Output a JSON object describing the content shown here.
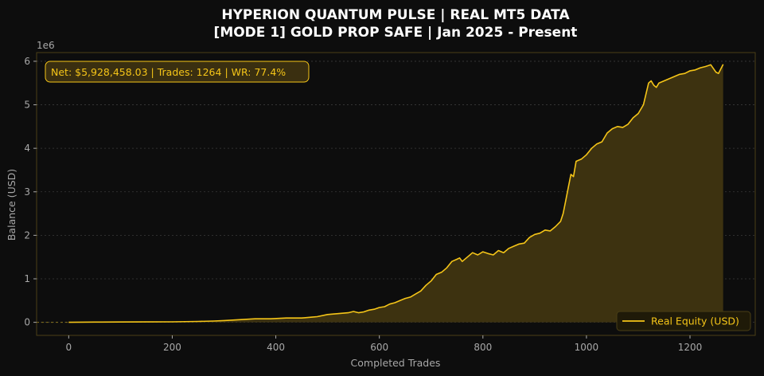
{
  "chart_data": {
    "type": "area",
    "title_line1": "HYPERION QUANTUM PULSE | REAL MT5 DATA",
    "title_line2": "[MODE 1] GOLD PROP SAFE | Jan 2025 - Present",
    "xlabel": "Completed Trades",
    "ylabel": "Balance (USD)",
    "y_multiplier_label": "1e6",
    "xlim": [
      -62,
      1326
    ],
    "ylim": [
      -0.3,
      6.2
    ],
    "x_ticks": [
      0,
      200,
      400,
      600,
      800,
      1000,
      1200
    ],
    "y_ticks": [
      0,
      1,
      2,
      3,
      4,
      5,
      6
    ],
    "grid": "horizontal dotted",
    "legend_position": "bottom-right",
    "annotation": "Net: $5,928,458.03 | Trades: 1264 | WR: 77.4%",
    "colors": {
      "line": "#f5c518",
      "fill": "#3d3210",
      "background": "#0d0d0d",
      "spine": "#4a3f16",
      "grid": "#3a3a3a"
    },
    "series": [
      {
        "name": "Real Equity (USD)",
        "x": [
          0,
          50,
          100,
          150,
          200,
          250,
          280,
          300,
          330,
          360,
          390,
          420,
          450,
          470,
          480,
          500,
          520,
          540,
          550,
          560,
          570,
          580,
          590,
          600,
          610,
          620,
          630,
          640,
          650,
          660,
          670,
          680,
          690,
          700,
          710,
          720,
          730,
          740,
          750,
          755,
          760,
          770,
          780,
          790,
          800,
          810,
          820,
          830,
          840,
          850,
          860,
          870,
          880,
          890,
          900,
          910,
          920,
          930,
          940,
          950,
          955,
          960,
          965,
          970,
          975,
          980,
          990,
          1000,
          1010,
          1020,
          1030,
          1040,
          1050,
          1060,
          1070,
          1080,
          1090,
          1100,
          1110,
          1120,
          1125,
          1130,
          1135,
          1140,
          1150,
          1160,
          1170,
          1180,
          1190,
          1200,
          1210,
          1220,
          1230,
          1240,
          1250,
          1255,
          1264
        ],
        "y": [
          0.0,
          0.005,
          0.008,
          0.01,
          0.012,
          0.02,
          0.03,
          0.04,
          0.06,
          0.08,
          0.08,
          0.1,
          0.1,
          0.12,
          0.13,
          0.18,
          0.2,
          0.22,
          0.25,
          0.22,
          0.24,
          0.28,
          0.3,
          0.34,
          0.36,
          0.42,
          0.45,
          0.5,
          0.55,
          0.58,
          0.65,
          0.72,
          0.85,
          0.95,
          1.1,
          1.15,
          1.25,
          1.4,
          1.45,
          1.48,
          1.4,
          1.5,
          1.6,
          1.55,
          1.62,
          1.58,
          1.55,
          1.65,
          1.6,
          1.7,
          1.75,
          1.8,
          1.82,
          1.95,
          2.02,
          2.05,
          2.12,
          2.1,
          2.2,
          2.32,
          2.5,
          2.8,
          3.1,
          3.4,
          3.35,
          3.7,
          3.75,
          3.85,
          4.0,
          4.1,
          4.15,
          4.35,
          4.45,
          4.5,
          4.48,
          4.55,
          4.7,
          4.8,
          5.0,
          5.5,
          5.55,
          5.45,
          5.4,
          5.5,
          5.55,
          5.6,
          5.65,
          5.7,
          5.72,
          5.78,
          5.8,
          5.85,
          5.88,
          5.92,
          5.75,
          5.72,
          5.93
        ]
      }
    ]
  }
}
